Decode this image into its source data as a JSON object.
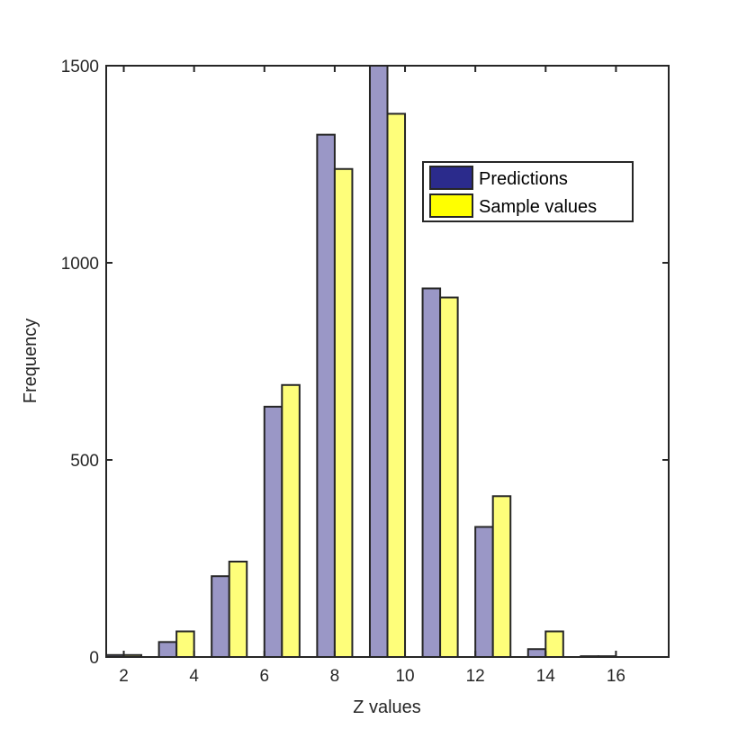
{
  "chart_data": {
    "type": "bar",
    "xlabel": "Z values",
    "ylabel": "Frequency",
    "xlim": [
      1.5,
      17.5
    ],
    "ylim": [
      0,
      1500
    ],
    "xticks": [
      2,
      4,
      6,
      8,
      10,
      12,
      14,
      16
    ],
    "yticks": [
      0,
      500,
      1000,
      1500
    ],
    "x": [
      2,
      3.5,
      5,
      6.5,
      8,
      9.5,
      11,
      12.5,
      14,
      15.5,
      17
    ],
    "series": [
      {
        "name": "Predictions",
        "color": "#9a97c6",
        "legend_color": "#2b2b8c",
        "values": [
          5,
          38,
          205,
          635,
          1325,
          1510,
          935,
          330,
          20,
          2,
          0
        ]
      },
      {
        "name": "Sample values",
        "color": "#fefe7a",
        "legend_color": "#ffff00",
        "values": [
          5,
          65,
          242,
          690,
          1238,
          1378,
          912,
          408,
          65,
          2,
          0
        ]
      }
    ],
    "legend_position": "upper-right",
    "grid": false
  }
}
